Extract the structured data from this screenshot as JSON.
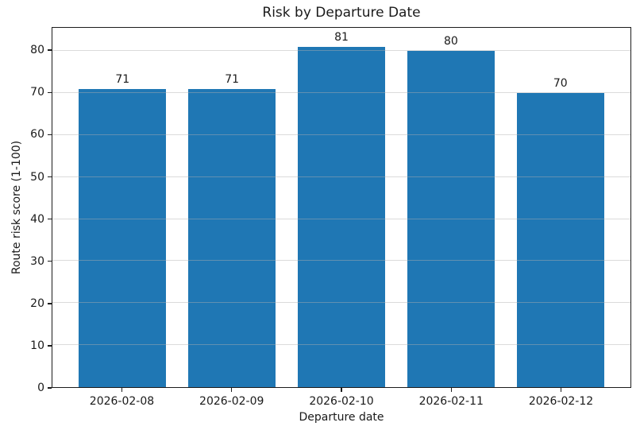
{
  "chart_data": {
    "type": "bar",
    "title": "Risk by Departure Date",
    "xlabel": "Departure date",
    "ylabel": "Route risk score (1-100)",
    "categories": [
      "2026-02-08",
      "2026-02-09",
      "2026-02-10",
      "2026-02-11",
      "2026-02-12"
    ],
    "values": [
      71,
      71,
      81,
      80,
      70
    ],
    "bar_labels": [
      "71",
      "71",
      "81",
      "80",
      "70"
    ],
    "yticks": [
      0,
      10,
      20,
      30,
      40,
      50,
      60,
      70,
      80
    ],
    "ylim": [
      0,
      85.5
    ],
    "bar_color": "#1f77b4",
    "grid": true,
    "legend": null
  }
}
